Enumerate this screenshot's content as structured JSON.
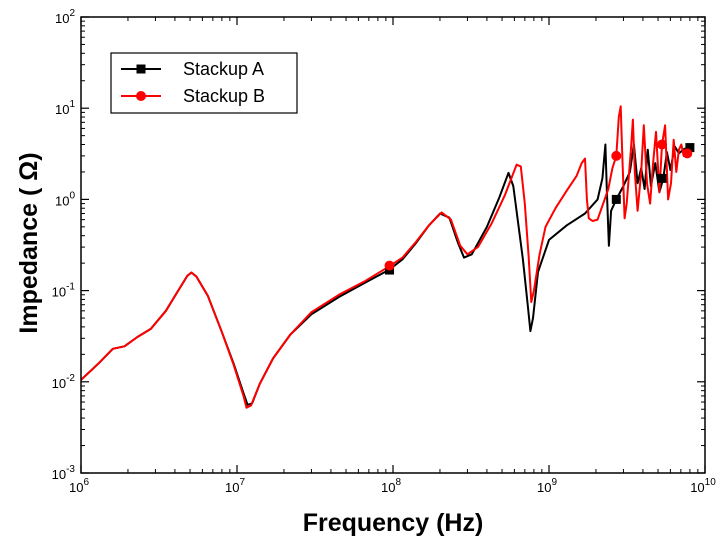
{
  "chart_data": {
    "type": "line",
    "title": "",
    "xlabel": "Frequency (Hz)",
    "ylabel": "Impedance ( Ω)",
    "xscale": "log",
    "yscale": "log",
    "xlim": [
      1000000,
      10000000000
    ],
    "ylim": [
      0.001,
      100
    ],
    "grid": false,
    "legend_position": "top-left",
    "x_ticks": [
      {
        "value": 1000000,
        "base": "10",
        "exp": "6"
      },
      {
        "value": 10000000,
        "base": "10",
        "exp": "7"
      },
      {
        "value": 100000000,
        "base": "10",
        "exp": "8"
      },
      {
        "value": 1000000000,
        "base": "10",
        "exp": "9"
      },
      {
        "value": 10000000000,
        "base": "10",
        "exp": "10"
      }
    ],
    "y_ticks": [
      {
        "value": 0.001,
        "base": "10",
        "exp": "-3"
      },
      {
        "value": 0.01,
        "base": "10",
        "exp": "-2"
      },
      {
        "value": 0.1,
        "base": "10",
        "exp": "-1"
      },
      {
        "value": 1,
        "base": "10",
        "exp": "0"
      },
      {
        "value": 10,
        "base": "10",
        "exp": "1"
      },
      {
        "value": 100,
        "base": "10",
        "exp": "2"
      }
    ],
    "series": [
      {
        "name": "Stackup A",
        "color": "#000000",
        "marker": "square",
        "points": [
          [
            1000000,
            0.0105
          ],
          [
            1300000,
            0.016
          ],
          [
            1600000,
            0.023
          ],
          [
            1900000,
            0.0245
          ],
          [
            2300000,
            0.031
          ],
          [
            2800000,
            0.038
          ],
          [
            3500000,
            0.06
          ],
          [
            4200000,
            0.1
          ],
          [
            4800000,
            0.145
          ],
          [
            5100000,
            0.158
          ],
          [
            5500000,
            0.142
          ],
          [
            6500000,
            0.088
          ],
          [
            8000000,
            0.035
          ],
          [
            9500000,
            0.016
          ],
          [
            11000000,
            0.0075
          ],
          [
            11700000,
            0.0056
          ],
          [
            12500000,
            0.0058
          ],
          [
            14000000,
            0.0095
          ],
          [
            17000000,
            0.018
          ],
          [
            22000000,
            0.033
          ],
          [
            30000000,
            0.055
          ],
          [
            45000000,
            0.085
          ],
          [
            65000000,
            0.12
          ],
          [
            95000000,
            0.17
          ],
          [
            115000000,
            0.22
          ],
          [
            140000000,
            0.33
          ],
          [
            170000000,
            0.52
          ],
          [
            200000000,
            0.7
          ],
          [
            230000000,
            0.63
          ],
          [
            260000000,
            0.34
          ],
          [
            285000000,
            0.23
          ],
          [
            320000000,
            0.25
          ],
          [
            400000000,
            0.5
          ],
          [
            480000000,
            1.05
          ],
          [
            550000000,
            1.95
          ],
          [
            590000000,
            1.4
          ],
          [
            630000000,
            0.6
          ],
          [
            680000000,
            0.22
          ],
          [
            730000000,
            0.07
          ],
          [
            760000000,
            0.036
          ],
          [
            790000000,
            0.05
          ],
          [
            850000000,
            0.16
          ],
          [
            1000000000,
            0.36
          ],
          [
            1300000000,
            0.52
          ],
          [
            1700000000,
            0.7
          ],
          [
            2050000000,
            1.0
          ],
          [
            2200000000,
            1.7
          ],
          [
            2300000000,
            4.0
          ],
          [
            2350000000,
            1.2
          ],
          [
            2420000000,
            0.31
          ],
          [
            2500000000,
            0.75
          ],
          [
            2700000000,
            1.0
          ],
          [
            3000000000,
            1.4
          ],
          [
            3300000000,
            2.0
          ],
          [
            3500000000,
            4.0
          ],
          [
            3700000000,
            1.5
          ],
          [
            3900000000,
            2.2
          ],
          [
            4100000000,
            1.3
          ],
          [
            4300000000,
            3.5
          ],
          [
            4500000000,
            1.4
          ],
          [
            4800000000,
            2.5
          ],
          [
            5100000000,
            1.2
          ],
          [
            5400000000,
            1.7
          ],
          [
            5700000000,
            3.3
          ],
          [
            6000000000,
            2.1
          ],
          [
            6400000000,
            3.8
          ],
          [
            6800000000,
            3.2
          ],
          [
            7400000000,
            3.6
          ],
          [
            8000000000,
            3.7
          ]
        ],
        "marker_points": [
          [
            95000000,
            0.168
          ],
          [
            2700000000,
            1.0
          ],
          [
            5300000000,
            1.7
          ],
          [
            8000000000,
            3.7
          ]
        ]
      },
      {
        "name": "Stackup B",
        "color": "#ff0000",
        "marker": "circle",
        "points": [
          [
            1000000,
            0.0105
          ],
          [
            1300000,
            0.016
          ],
          [
            1600000,
            0.023
          ],
          [
            1900000,
            0.0245
          ],
          [
            2300000,
            0.031
          ],
          [
            2800000,
            0.038
          ],
          [
            3500000,
            0.06
          ],
          [
            4200000,
            0.1
          ],
          [
            4800000,
            0.145
          ],
          [
            5100000,
            0.158
          ],
          [
            5500000,
            0.142
          ],
          [
            6500000,
            0.088
          ],
          [
            8000000,
            0.035
          ],
          [
            9500000,
            0.0155
          ],
          [
            11000000,
            0.007
          ],
          [
            11500000,
            0.0052
          ],
          [
            12300000,
            0.0055
          ],
          [
            14000000,
            0.0095
          ],
          [
            17000000,
            0.018
          ],
          [
            22000000,
            0.033
          ],
          [
            30000000,
            0.058
          ],
          [
            45000000,
            0.09
          ],
          [
            65000000,
            0.125
          ],
          [
            95000000,
            0.185
          ],
          [
            115000000,
            0.23
          ],
          [
            140000000,
            0.34
          ],
          [
            170000000,
            0.52
          ],
          [
            205000000,
            0.72
          ],
          [
            235000000,
            0.6
          ],
          [
            270000000,
            0.31
          ],
          [
            300000000,
            0.25
          ],
          [
            350000000,
            0.3
          ],
          [
            430000000,
            0.55
          ],
          [
            520000000,
            1.1
          ],
          [
            620000000,
            2.4
          ],
          [
            660000000,
            2.3
          ],
          [
            700000000,
            0.9
          ],
          [
            740000000,
            0.24
          ],
          [
            770000000,
            0.075
          ],
          [
            800000000,
            0.1
          ],
          [
            870000000,
            0.25
          ],
          [
            950000000,
            0.5
          ],
          [
            1100000000,
            0.8
          ],
          [
            1300000000,
            1.25
          ],
          [
            1500000000,
            1.8
          ],
          [
            1620000000,
            2.5
          ],
          [
            1700000000,
            2.8
          ],
          [
            1750000000,
            1.0
          ],
          [
            1800000000,
            0.62
          ],
          [
            1900000000,
            0.58
          ],
          [
            2050000000,
            0.6
          ],
          [
            2200000000,
            0.85
          ],
          [
            2400000000,
            1.3
          ],
          [
            2550000000,
            2.2
          ],
          [
            2700000000,
            3.0
          ],
          [
            2800000000,
            8.0
          ],
          [
            2880000000,
            10.5
          ],
          [
            2950000000,
            3.0
          ],
          [
            3050000000,
            0.62
          ],
          [
            3150000000,
            0.9
          ],
          [
            3350000000,
            3.5
          ],
          [
            3450000000,
            7.5
          ],
          [
            3550000000,
            2.0
          ],
          [
            3700000000,
            0.75
          ],
          [
            3900000000,
            2.0
          ],
          [
            4050000000,
            6.5
          ],
          [
            4250000000,
            1.5
          ],
          [
            4450000000,
            0.9
          ],
          [
            4650000000,
            2.5
          ],
          [
            4850000000,
            5.5
          ],
          [
            5100000000,
            1.2
          ],
          [
            5300000000,
            4.0
          ],
          [
            5550000000,
            6.5
          ],
          [
            5800000000,
            1.0
          ],
          [
            6050000000,
            1.5
          ],
          [
            6300000000,
            4.5
          ],
          [
            6550000000,
            2.0
          ],
          [
            6800000000,
            3.5
          ],
          [
            7050000000,
            4.0
          ],
          [
            7300000000,
            3.0
          ],
          [
            7700000000,
            3.2
          ]
        ],
        "marker_points": [
          [
            95000000,
            0.188
          ],
          [
            2700000000,
            3.0
          ],
          [
            5300000000,
            4.0
          ],
          [
            7700000000,
            3.2
          ]
        ]
      }
    ]
  }
}
